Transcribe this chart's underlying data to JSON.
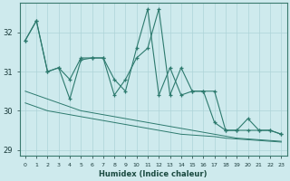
{
  "x": [
    0,
    1,
    2,
    3,
    4,
    5,
    6,
    7,
    8,
    9,
    10,
    11,
    12,
    13,
    14,
    15,
    16,
    17,
    18,
    19,
    20,
    21,
    22,
    23
  ],
  "y_jagged1": [
    31.8,
    32.3,
    31.0,
    31.1,
    30.3,
    31.3,
    31.35,
    31.35,
    30.8,
    30.5,
    31.6,
    32.6,
    30.4,
    31.1,
    30.4,
    30.5,
    30.5,
    29.7,
    29.5,
    29.5,
    29.8,
    29.5,
    29.5,
    29.4
  ],
  "y_jagged2": [
    31.8,
    32.3,
    31.0,
    31.1,
    30.8,
    31.35,
    31.35,
    31.35,
    30.4,
    30.8,
    31.35,
    31.6,
    32.6,
    30.4,
    31.1,
    30.5,
    30.5,
    30.5,
    29.5,
    29.5,
    29.5,
    29.5,
    29.5,
    29.4
  ],
  "y_trend_upper": [
    30.5,
    30.4,
    30.3,
    30.2,
    30.1,
    30.0,
    29.95,
    29.9,
    29.85,
    29.8,
    29.75,
    29.7,
    29.65,
    29.6,
    29.55,
    29.5,
    29.45,
    29.4,
    29.35,
    29.3,
    29.28,
    29.26,
    29.24,
    29.22
  ],
  "y_trend_lower": [
    30.2,
    30.1,
    30.0,
    29.95,
    29.9,
    29.85,
    29.8,
    29.75,
    29.7,
    29.65,
    29.6,
    29.55,
    29.5,
    29.45,
    29.4,
    29.38,
    29.36,
    29.34,
    29.3,
    29.28,
    29.26,
    29.24,
    29.22,
    29.2
  ],
  "ylim": [
    28.85,
    32.75
  ],
  "yticks": [
    29,
    30,
    31,
    32
  ],
  "xlabel": "Humidex (Indice chaleur)",
  "bg_color": "#ceeaed",
  "line_color": "#2d7a6e",
  "grid_color": "#aed4d8"
}
